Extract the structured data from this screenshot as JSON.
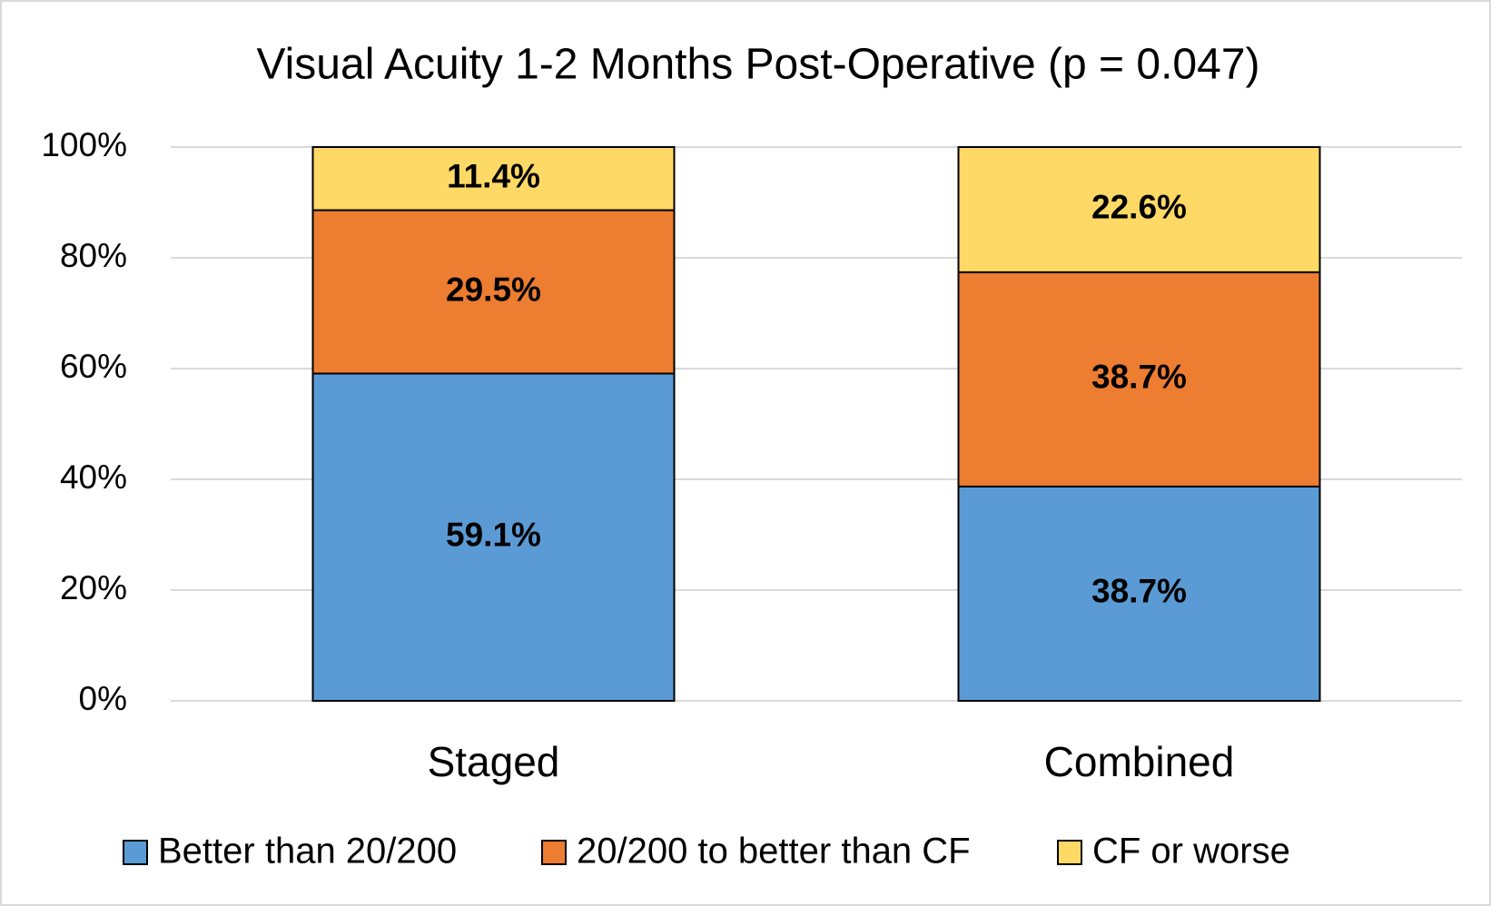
{
  "chart_data": {
    "type": "stacked_bar",
    "title": "Visual Acuity 1-2 Months Post-Operative (p = 0.047)",
    "categories": [
      "Staged",
      "Combined"
    ],
    "series": [
      {
        "name": "Better than 20/200",
        "color": "#5b9bd5",
        "values": [
          59.1,
          38.7
        ],
        "value_labels": [
          "59.1%",
          "38.7%"
        ]
      },
      {
        "name": "20/200 to better than CF",
        "color": "#ed7d31",
        "values": [
          29.5,
          38.7
        ],
        "value_labels": [
          "29.5%",
          "38.7%"
        ]
      },
      {
        "name": "CF or worse",
        "color": "#ffd966",
        "values": [
          11.4,
          22.6
        ],
        "value_labels": [
          "11.4%",
          "22.6%"
        ]
      }
    ],
    "ylim": [
      0,
      100
    ],
    "yticks": [
      {
        "value": 0,
        "label": "0%"
      },
      {
        "value": 20,
        "label": "20%"
      },
      {
        "value": 40,
        "label": "40%"
      },
      {
        "value": 60,
        "label": "60%"
      },
      {
        "value": 80,
        "label": "80%"
      },
      {
        "value": 100,
        "label": "100%"
      }
    ],
    "grid": true,
    "legend": "bottom"
  }
}
